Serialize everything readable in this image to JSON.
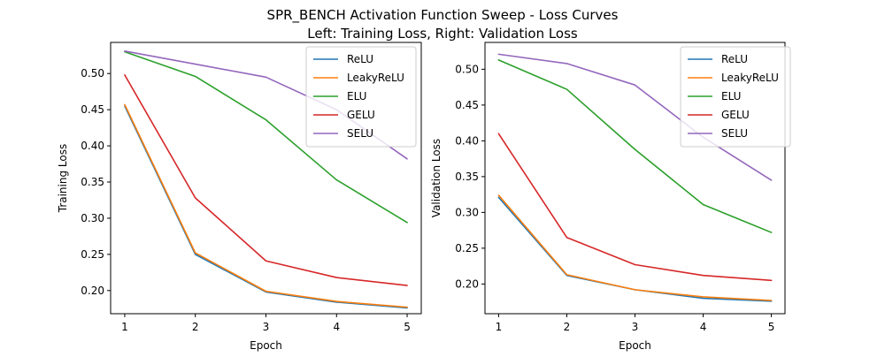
{
  "title": {
    "line1": "SPR_BENCH Activation Function Sweep - Loss Curves",
    "line2": "Left: Training Loss, Right: Validation Loss"
  },
  "colors": {
    "ReLU": "#1f77b4",
    "LeakyReLU": "#ff7f0e",
    "ELU": "#2ca02c",
    "GELU": "#d62728",
    "SELU": "#9467bd"
  },
  "chart_data": [
    {
      "type": "line",
      "xlabel": "Epoch",
      "ylabel": "Training Loss",
      "x": [
        1,
        2,
        3,
        4,
        5
      ],
      "xticks": [
        "1",
        "2",
        "3",
        "4",
        "5"
      ],
      "xlim": [
        0.8,
        5.2
      ],
      "ylim": [
        0.168,
        0.543
      ],
      "yticks": [
        "0.20",
        "0.25",
        "0.30",
        "0.35",
        "0.40",
        "0.45",
        "0.50"
      ],
      "legend": "top-right",
      "grid": false,
      "series": [
        {
          "name": "ReLU",
          "values": [
            0.455,
            0.25,
            0.198,
            0.184,
            0.176
          ]
        },
        {
          "name": "LeakyReLU",
          "values": [
            0.457,
            0.252,
            0.199,
            0.185,
            0.177
          ]
        },
        {
          "name": "ELU",
          "values": [
            0.53,
            0.496,
            0.436,
            0.353,
            0.294
          ]
        },
        {
          "name": "GELU",
          "values": [
            0.498,
            0.328,
            0.241,
            0.218,
            0.207
          ]
        },
        {
          "name": "SELU",
          "values": [
            0.531,
            0.513,
            0.495,
            0.45,
            0.382
          ]
        }
      ]
    },
    {
      "type": "line",
      "xlabel": "Epoch",
      "ylabel": "Validation Loss",
      "x": [
        1,
        2,
        3,
        4,
        5
      ],
      "xticks": [
        "1",
        "2",
        "3",
        "4",
        "5"
      ],
      "xlim": [
        0.8,
        5.2
      ],
      "ylim": [
        0.1585,
        0.5375
      ],
      "yticks": [
        "0.20",
        "0.25",
        "0.30",
        "0.35",
        "0.40",
        "0.45",
        "0.50"
      ],
      "legend": "top-right",
      "grid": false,
      "series": [
        {
          "name": "ReLU",
          "values": [
            0.321,
            0.212,
            0.192,
            0.18,
            0.176
          ]
        },
        {
          "name": "LeakyReLU",
          "values": [
            0.324,
            0.213,
            0.192,
            0.182,
            0.177
          ]
        },
        {
          "name": "ELU",
          "values": [
            0.513,
            0.472,
            0.388,
            0.311,
            0.272
          ]
        },
        {
          "name": "GELU",
          "values": [
            0.41,
            0.265,
            0.227,
            0.212,
            0.205
          ]
        },
        {
          "name": "SELU",
          "values": [
            0.521,
            0.508,
            0.478,
            0.405,
            0.345
          ]
        }
      ]
    }
  ]
}
